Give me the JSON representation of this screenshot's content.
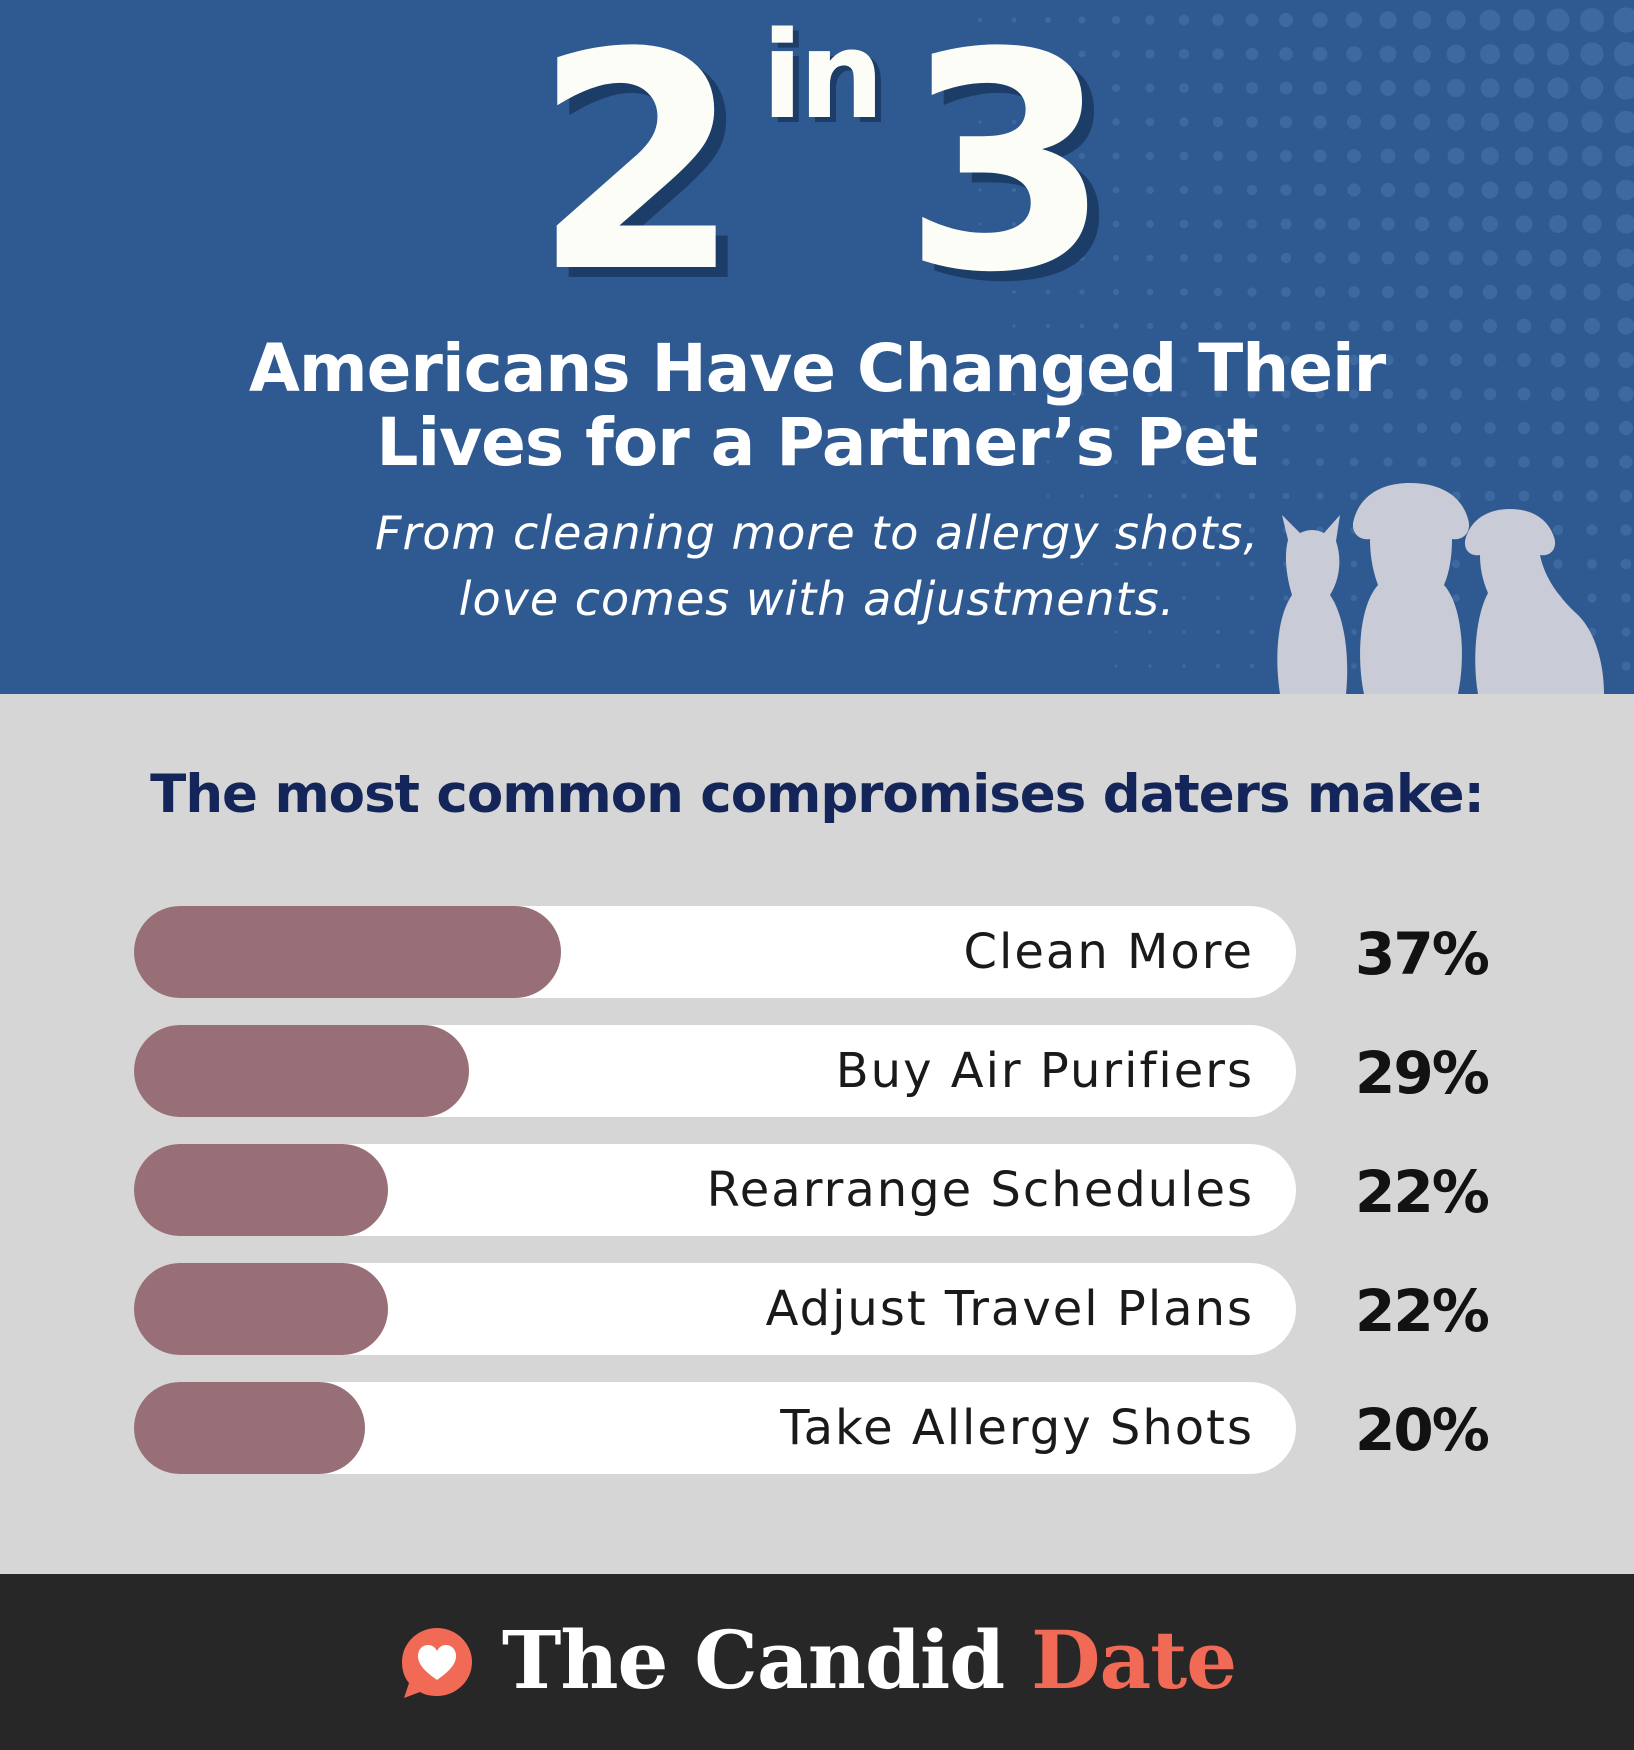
{
  "hero": {
    "stat_numerator": "2",
    "stat_in": "in",
    "stat_denominator": "3",
    "title_line1": "Americans Have Changed Their",
    "title_line2": "Lives for a Partner’s Pet",
    "subtitle_line1": "From cleaning more to allergy shots,",
    "subtitle_line2": "love comes with adjustments."
  },
  "section": {
    "title": "The most common compromises daters make:"
  },
  "chart_data": {
    "type": "bar",
    "orientation": "horizontal",
    "categories": [
      "Clean More",
      "Buy Air Purifiers",
      "Rearrange Schedules",
      "Adjust Travel Plans",
      "Take Allergy Shots"
    ],
    "values": [
      37,
      29,
      22,
      22,
      20
    ],
    "value_labels": [
      "37%",
      "29%",
      "22%",
      "22%",
      "20%"
    ],
    "unit": "%",
    "xlim": [
      0,
      100
    ]
  },
  "footer": {
    "brand_primary": "The Candid",
    "brand_accent": "Date"
  },
  "colors": {
    "hero_background": "#2f5a91",
    "page_background": "#d6d6d6",
    "bar_fill": "#986f77",
    "bar_track": "#ffffff",
    "section_title": "#142559",
    "footer_background": "#272727",
    "brand_accent": "#f06a55"
  },
  "icons": {
    "brand": "heart-chat-bubble-icon",
    "pets": "cat-dog-silhouettes-icon"
  }
}
